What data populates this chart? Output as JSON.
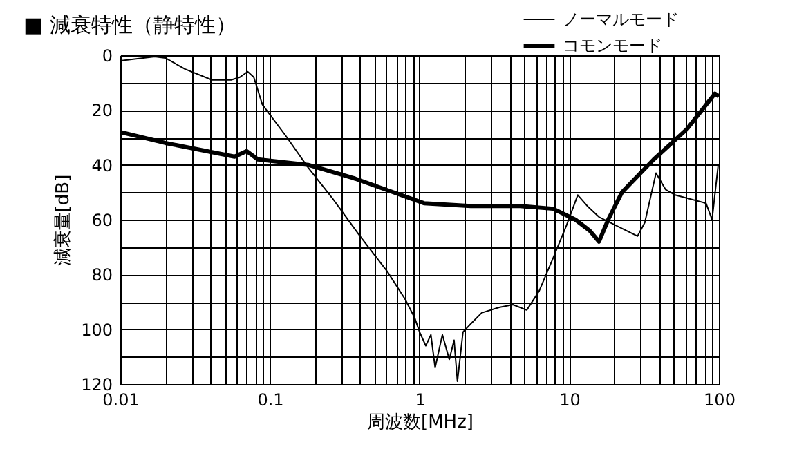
{
  "chart_data": {
    "type": "line",
    "title": "■ 減衰特性（静特性）",
    "xlabel": "周波数[MHz]",
    "ylabel": "減衰量[dB]",
    "log": "x",
    "xlim": [
      0.01,
      100
    ],
    "ylim": [
      120,
      0
    ],
    "xticks": [
      0.01,
      {
        "value": 0.02,
        "label": null
      },
      {
        "value": 0.03,
        "label": null
      },
      {
        "value": 0.04,
        "label": null
      },
      {
        "value": 0.05,
        "label": null
      },
      {
        "value": 0.06,
        "label": null
      },
      {
        "value": 0.07,
        "label": null
      },
      {
        "value": 0.08,
        "label": null
      },
      {
        "value": 0.09,
        "label": null
      },
      0.1,
      {
        "value": 0.2,
        "label": null
      },
      {
        "value": 0.3,
        "label": null
      },
      {
        "value": 0.4,
        "label": null
      },
      {
        "value": 0.5,
        "label": null
      },
      {
        "value": 0.6,
        "label": null
      },
      {
        "value": 0.7,
        "label": null
      },
      {
        "value": 0.8,
        "label": null
      },
      {
        "value": 0.9,
        "label": null
      },
      1,
      {
        "value": 2,
        "label": null
      },
      {
        "value": 3,
        "label": null
      },
      {
        "value": 4,
        "label": null
      },
      {
        "value": 5,
        "label": null
      },
      {
        "value": 6,
        "label": null
      },
      {
        "value": 7,
        "label": null
      },
      {
        "value": 8,
        "label": null
      },
      {
        "value": 9,
        "label": null
      },
      10,
      {
        "value": 20,
        "label": null
      },
      {
        "value": 30,
        "label": null
      },
      {
        "value": 40,
        "label": null
      },
      {
        "value": 50,
        "label": null
      },
      {
        "value": 60,
        "label": null
      },
      {
        "value": 70,
        "label": null
      },
      {
        "value": 80,
        "label": null
      },
      {
        "value": 90,
        "label": null
      },
      100
    ],
    "yticks": [
      0,
      {
        "value": 10,
        "label": null
      },
      20,
      {
        "value": 30,
        "label": null
      },
      40,
      {
        "value": 50,
        "label": null
      },
      60,
      {
        "value": 70,
        "label": null
      },
      80,
      {
        "value": 90,
        "label": null
      },
      100,
      {
        "value": 110,
        "label": null
      },
      120
    ],
    "grid": true,
    "legend": "top right",
    "line_style": "solid",
    "marker": "none",
    "series": [
      {
        "name": "ノーマルモード",
        "color": "#000000",
        "x": [
          0.01,
          0.017,
          0.02,
          0.027,
          0.041,
          0.055,
          0.063,
          0.071,
          0.078,
          0.089,
          0.13,
          0.18,
          0.26,
          0.4,
          0.61,
          0.8,
          0.93,
          1.0,
          1.1,
          1.19,
          1.27,
          1.42,
          1.58,
          1.7,
          1.79,
          1.95,
          2.2,
          2.6,
          3.4,
          4.2,
          5.2,
          6.3,
          7.8,
          9.6,
          11.4,
          13.2,
          15.8,
          28.6,
          32,
          38,
          44,
          51,
          82,
          90,
          99
        ],
        "values": [
          2,
          0.5,
          1,
          5,
          9,
          9,
          8,
          6,
          8,
          18,
          30,
          41,
          52,
          66,
          79,
          89,
          96,
          101,
          106,
          102,
          114,
          102,
          111,
          104,
          119,
          101,
          98,
          94,
          92,
          91,
          93,
          86,
          74,
          62,
          51,
          55,
          59,
          66,
          61,
          43,
          49,
          51,
          54,
          60,
          40
        ]
      },
      {
        "name": "コモンモード",
        "color": "#000000",
        "x": [
          0.01,
          0.02,
          0.058,
          0.07,
          0.083,
          0.18,
          0.37,
          0.75,
          1.07,
          2.2,
          4.7,
          7.8,
          11,
          13.7,
          15.8,
          18.2,
          22.5,
          36.7,
          61,
          94,
          100
        ],
        "values": [
          28,
          32,
          37,
          35,
          38,
          40,
          45,
          51,
          54,
          55,
          55,
          56,
          60,
          64,
          68,
          60,
          50,
          38,
          27,
          14,
          15
        ]
      }
    ]
  }
}
